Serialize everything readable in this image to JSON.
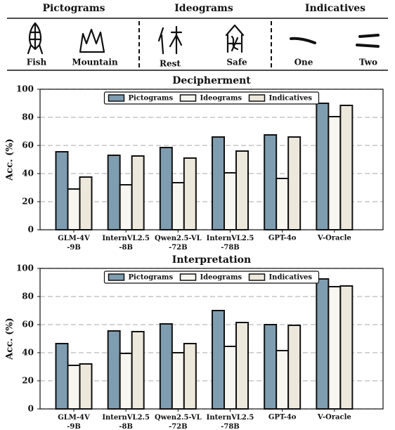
{
  "header": {
    "groups": [
      "Pictograms",
      "Ideograms",
      "Indicatives"
    ],
    "items": [
      "Fish",
      "Mountain",
      "Rest",
      "Safe",
      "One",
      "Two"
    ]
  },
  "chart_data": [
    {
      "type": "bar",
      "title": "Decipherment",
      "y_label": "Acc. (%)",
      "categories": [
        "GLM-4V\n-9B",
        "InternVL2.5\n-8B",
        "Qwen2.5-VL\n-72B",
        "InternVL2.5\n-78B",
        "GPT-4o",
        "V-Oracle"
      ],
      "series": [
        {
          "name": "Pictograms",
          "color": "#7f9db1",
          "values": [
            55.5,
            53,
            58.5,
            66,
            67.5,
            90
          ]
        },
        {
          "name": "Ideograms",
          "color": "#f8f6f1",
          "values": [
            29,
            32,
            33.5,
            40.5,
            36.5,
            80.5
          ]
        },
        {
          "name": "Indicatives",
          "color": "#ede8dc",
          "values": [
            37.5,
            52.5,
            51,
            56,
            66,
            88.5
          ]
        }
      ],
      "ylim": [
        0,
        100
      ],
      "yticks": [
        0,
        20,
        40,
        60,
        80,
        100
      ],
      "grid": true,
      "legend": "upper center"
    },
    {
      "type": "bar",
      "title": "Interpretation",
      "y_label": "Acc. (%)",
      "categories": [
        "GLM-4V\n-9B",
        "InternVL2.5\n-8B",
        "Qwen2.5-VL\n-72B",
        "InternVL2.5\n-78B",
        "GPT-4o",
        "V-Oracle"
      ],
      "series": [
        {
          "name": "Pictograms",
          "color": "#7f9db1",
          "values": [
            46.5,
            55.5,
            60.5,
            70,
            60,
            92.5
          ]
        },
        {
          "name": "Ideograms",
          "color": "#f8f6f1",
          "values": [
            31,
            39.5,
            40,
            44.5,
            41.5,
            87
          ]
        },
        {
          "name": "Indicatives",
          "color": "#ede8dc",
          "values": [
            32,
            55,
            46.5,
            61.5,
            59.5,
            87.5
          ]
        }
      ],
      "ylim": [
        0,
        100
      ],
      "yticks": [
        0,
        20,
        40,
        60,
        80,
        100
      ],
      "grid": true,
      "legend": "upper center"
    }
  ]
}
